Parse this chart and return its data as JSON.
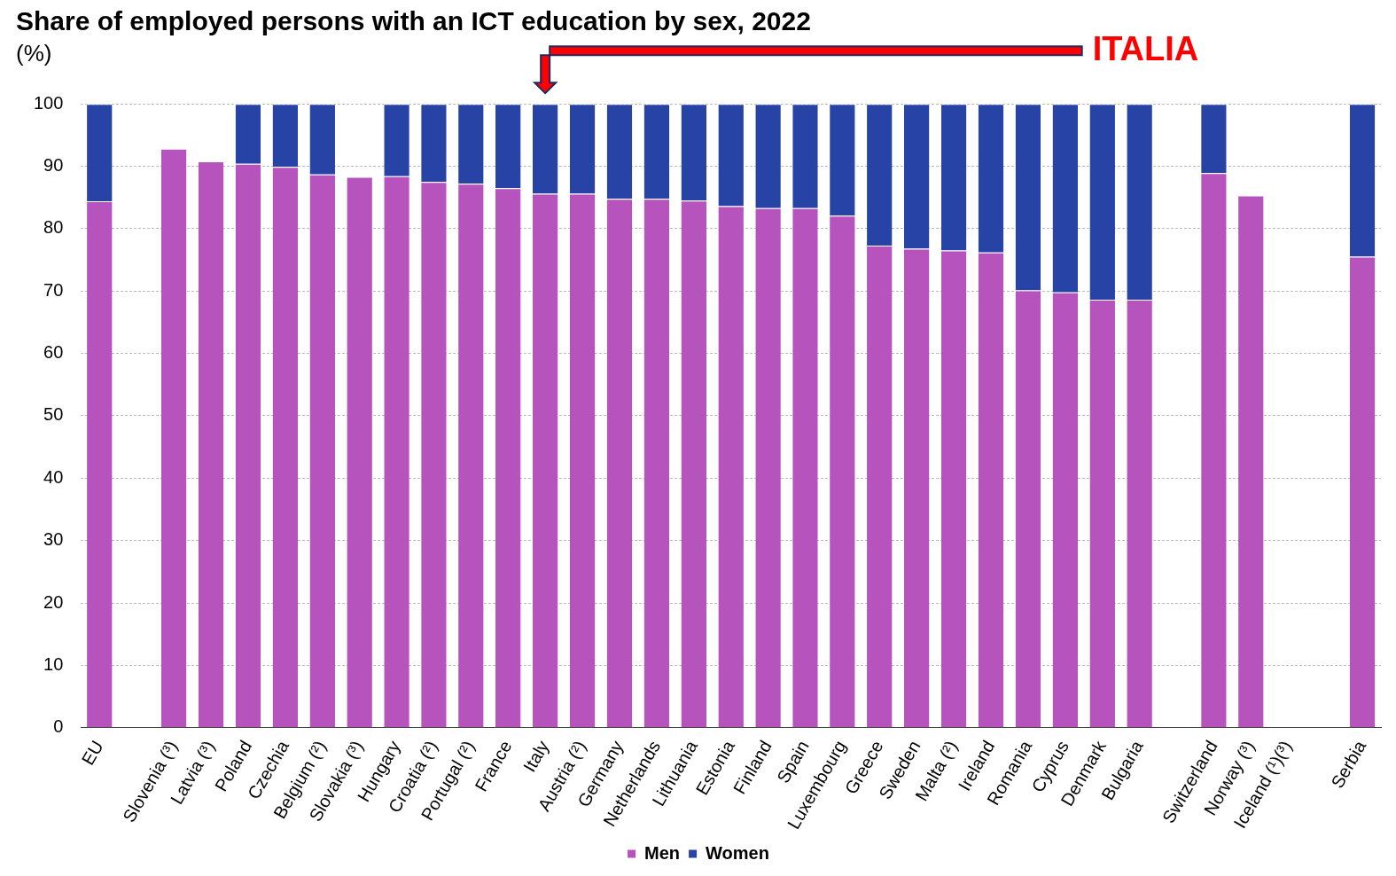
{
  "chart_data": {
    "type": "bar",
    "stacked": true,
    "title": "Share of employed persons with an ICT education by sex, 2022",
    "subtitle": "(%)",
    "categories": [
      "EU",
      null,
      "Slovenia (³)",
      "Latvia (³)",
      "Poland",
      "Czechia",
      "Belgium (²)",
      "Slovakia (³)",
      "Hungary",
      "Croatia (²)",
      "Portugal (²)",
      "France",
      "Italy",
      "Austria (²)",
      "Germany",
      "Netherlands",
      "Lithuania",
      "Estonia",
      "Finland",
      "Spain",
      "Luxembourg",
      "Greece",
      "Sweden",
      "Malta (²)",
      "Ireland",
      "Romania",
      "Cyprus",
      "Denmark",
      "Bulgaria",
      null,
      "Switzerland",
      "Norway (³)",
      "Iceland (¹)(³)",
      null,
      "Serbia"
    ],
    "series": [
      {
        "name": "Men",
        "color": "#b653bd",
        "values": [
          84.4,
          null,
          92.8,
          90.8,
          90.4,
          89.9,
          88.7,
          88.3,
          88.4,
          87.5,
          87.2,
          86.5,
          85.6,
          85.6,
          84.8,
          84.8,
          84.5,
          83.6,
          83.3,
          83.3,
          82.1,
          77.3,
          76.8,
          76.5,
          76.2,
          70.1,
          69.8,
          68.6,
          68.6,
          null,
          88.9,
          85.3,
          null,
          null,
          75.5
        ]
      },
      {
        "name": "Women",
        "color": "#2743a6",
        "values": [
          15.6,
          null,
          null,
          null,
          9.6,
          10.1,
          11.3,
          null,
          11.6,
          12.5,
          12.8,
          13.5,
          14.4,
          14.4,
          15.2,
          15.2,
          15.5,
          16.4,
          16.7,
          16.7,
          17.9,
          22.7,
          23.2,
          23.5,
          23.8,
          29.9,
          30.2,
          31.4,
          31.4,
          null,
          11.1,
          null,
          null,
          null,
          24.5
        ]
      }
    ],
    "ylim": [
      0,
      100
    ],
    "yticks": [
      0,
      10,
      20,
      30,
      40,
      50,
      60,
      70,
      80,
      90,
      100
    ],
    "grid": "y",
    "legend": "bottom",
    "annotations": [
      "ITALIA"
    ]
  }
}
